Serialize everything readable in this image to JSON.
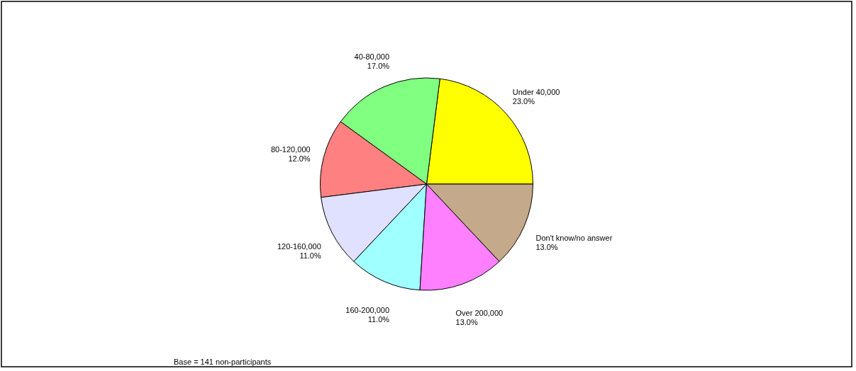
{
  "chart_data": {
    "type": "pie",
    "categories": [
      "Under 40,000",
      "40-80,000",
      "80-120,000",
      "120-160,000",
      "160-200,000",
      "Over 200,000",
      "Don't know/no answer"
    ],
    "values": [
      23,
      17,
      12,
      11,
      11,
      13,
      13
    ],
    "value_labels": [
      "23.0%",
      "17.0%",
      "12.0%",
      "11.0%",
      "11.0%",
      "13.0%",
      "13.0%"
    ],
    "colors": [
      "#ffff00",
      "#80ff80",
      "#ff8080",
      "#e0e0ff",
      "#a0ffff",
      "#ff80ff",
      "#c4a98a"
    ],
    "annotations": [
      "Base = 141 non-participants"
    ]
  }
}
